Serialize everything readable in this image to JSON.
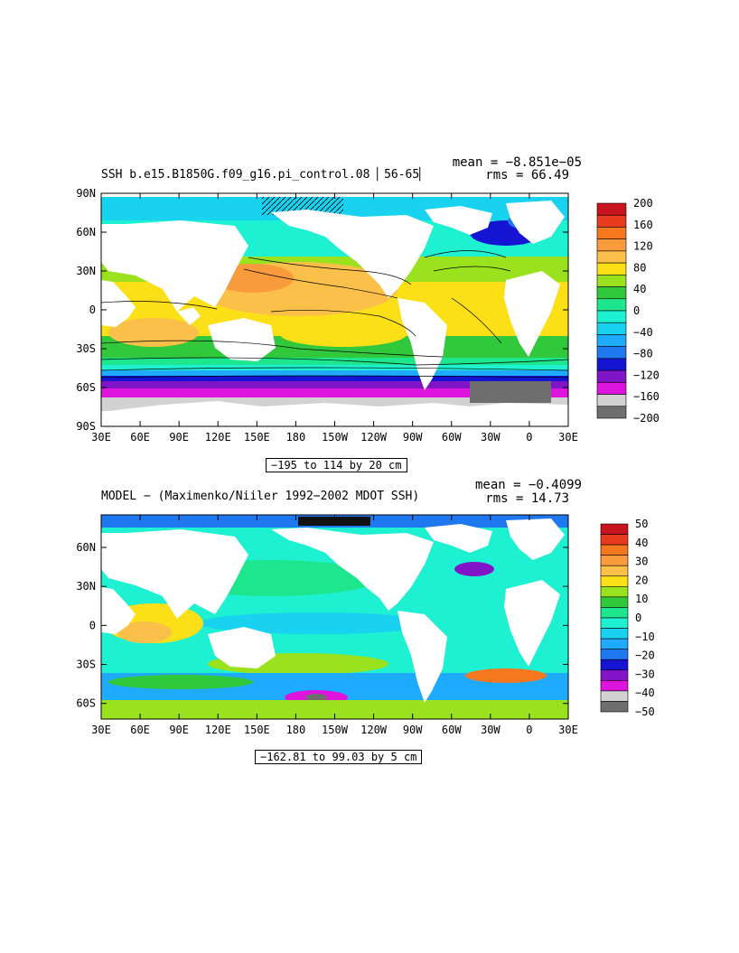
{
  "panels": [
    {
      "title": "SSH b.e15.B1850G.f09_g16.pi_control.08 ▏56-65▏",
      "mean_text": "mean = −8.851e−05",
      "rms_text": "rms = 66.49",
      "footer_text": "−195 to 114 by 20 cm",
      "lat_ticks": [
        "90N",
        "60N",
        "30N",
        "0",
        "30S",
        "60S",
        "90S"
      ],
      "lon_ticks": [
        "30E",
        "60E",
        "90E",
        "120E",
        "150E",
        "180",
        "150W",
        "120W",
        "90W",
        "60W",
        "30W",
        "0",
        "30E"
      ],
      "colorbar_labels": [
        "200",
        "160",
        "120",
        "80",
        "40",
        "0",
        "−40",
        "−80",
        "−120",
        "−160",
        "−200"
      ],
      "colorbar_colors": [
        "#c8141e",
        "#e83a1e",
        "#f5781e",
        "#f99a3c",
        "#fbc04a",
        "#fbe018",
        "#9ae21e",
        "#32c83c",
        "#1ee68c",
        "#1ef0d2",
        "#19d2f0",
        "#1eaaff",
        "#1e78f0",
        "#1414d2",
        "#8214c8",
        "#dc14dc",
        "#d2d2d2",
        "#6e6e6e"
      ]
    },
    {
      "title": "MODEL − (Maximenko/Niiler 1992−2002 MDOT SSH)",
      "mean_text": "mean = −0.4099",
      "rms_text": "rms = 14.73",
      "footer_text": "−162.81 to 99.03 by 5 cm",
      "lat_ticks": [
        "60N",
        "30N",
        "0",
        "30S",
        "60S"
      ],
      "lon_ticks": [
        "30E",
        "60E",
        "90E",
        "120E",
        "150E",
        "180",
        "150W",
        "120W",
        "90W",
        "60W",
        "30W",
        "0",
        "30E"
      ],
      "colorbar_labels": [
        "50",
        "40",
        "30",
        "20",
        "10",
        "0",
        "−10",
        "−20",
        "−30",
        "−40",
        "−50"
      ],
      "colorbar_colors": [
        "#c8141e",
        "#e83a1e",
        "#f5781e",
        "#f99a3c",
        "#fbc04a",
        "#fbe018",
        "#9ae21e",
        "#32c83c",
        "#1ee68c",
        "#1ef0d2",
        "#19d2f0",
        "#1eaaff",
        "#1e78f0",
        "#1414d2",
        "#8214c8",
        "#dc14dc",
        "#d2d2d2",
        "#6e6e6e"
      ]
    }
  ],
  "chart_data": [
    {
      "type": "heatmap",
      "title": "SSH b.e15.B1850G.f09_g16.pi_control.08 ▏56-65▏",
      "variable": "SSH",
      "units": "cm",
      "mean": -8.851e-05,
      "rms": 66.49,
      "contour_min": -195,
      "contour_max": 114,
      "contour_interval": 20,
      "lon_range": [
        30,
        390
      ],
      "lat_range": [
        -90,
        90
      ],
      "colorbar_levels": [
        200,
        160,
        120,
        80,
        40,
        0,
        -40,
        -80,
        -120,
        -160,
        -200
      ]
    },
    {
      "type": "heatmap",
      "title": "MODEL − (Maximenko/Niiler 1992−2002 MDOT SSH)",
      "units": "cm",
      "mean": -0.4099,
      "rms": 14.73,
      "contour_min": -162.81,
      "contour_max": 99.03,
      "contour_interval": 5,
      "lon_range": [
        30,
        390
      ],
      "lat_range": [
        -72,
        85
      ],
      "colorbar_levels": [
        50,
        40,
        30,
        20,
        10,
        0,
        -10,
        -20,
        -30,
        -40,
        -50
      ]
    }
  ]
}
